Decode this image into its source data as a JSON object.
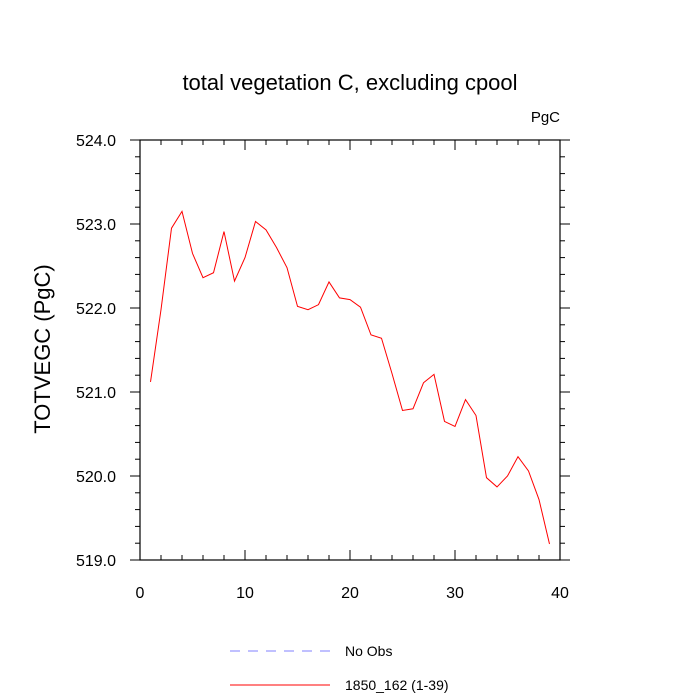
{
  "chart_data": {
    "type": "line",
    "title": "total vegetation C, excluding cpool",
    "units_label": "PgC",
    "ylabel": "TOTVEGC  (PgC)",
    "xlabel": "",
    "xlim": [
      0,
      40
    ],
    "ylim": [
      519.0,
      524.0
    ],
    "x_ticks": [
      0,
      10,
      20,
      30,
      40
    ],
    "x_tick_labels": [
      "0",
      "10",
      "20",
      "30",
      "40"
    ],
    "x_minor_step": 2,
    "y_ticks": [
      519.0,
      520.0,
      521.0,
      522.0,
      523.0,
      524.0
    ],
    "y_tick_labels": [
      "519.0",
      "520.0",
      "521.0",
      "522.0",
      "523.0",
      "524.0"
    ],
    "y_minor_step": 0.2,
    "grid": false,
    "legend_position": "bottom",
    "series": [
      {
        "name": "No Obs",
        "color": "#8080ff",
        "style": "dashed",
        "x": [],
        "values": []
      },
      {
        "name": "1850_162 (1-39)",
        "color": "#ff0000",
        "style": "solid",
        "x": [
          1,
          2,
          3,
          4,
          5,
          6,
          7,
          8,
          9,
          10,
          11,
          12,
          13,
          14,
          15,
          16,
          17,
          18,
          19,
          20,
          21,
          22,
          23,
          24,
          25,
          26,
          27,
          28,
          29,
          30,
          31,
          32,
          33,
          34,
          35,
          36,
          37,
          38,
          39
        ],
        "values": [
          521.12,
          521.98,
          522.95,
          523.15,
          522.65,
          522.36,
          522.42,
          522.91,
          522.32,
          522.6,
          523.03,
          522.93,
          522.72,
          522.48,
          522.02,
          521.98,
          522.04,
          522.31,
          522.12,
          522.1,
          522.01,
          521.68,
          521.64,
          521.22,
          520.78,
          520.8,
          521.11,
          521.21,
          520.65,
          520.59,
          520.91,
          520.72,
          519.98,
          519.87,
          520.0,
          520.23,
          520.06,
          519.72,
          519.19
        ]
      }
    ]
  }
}
